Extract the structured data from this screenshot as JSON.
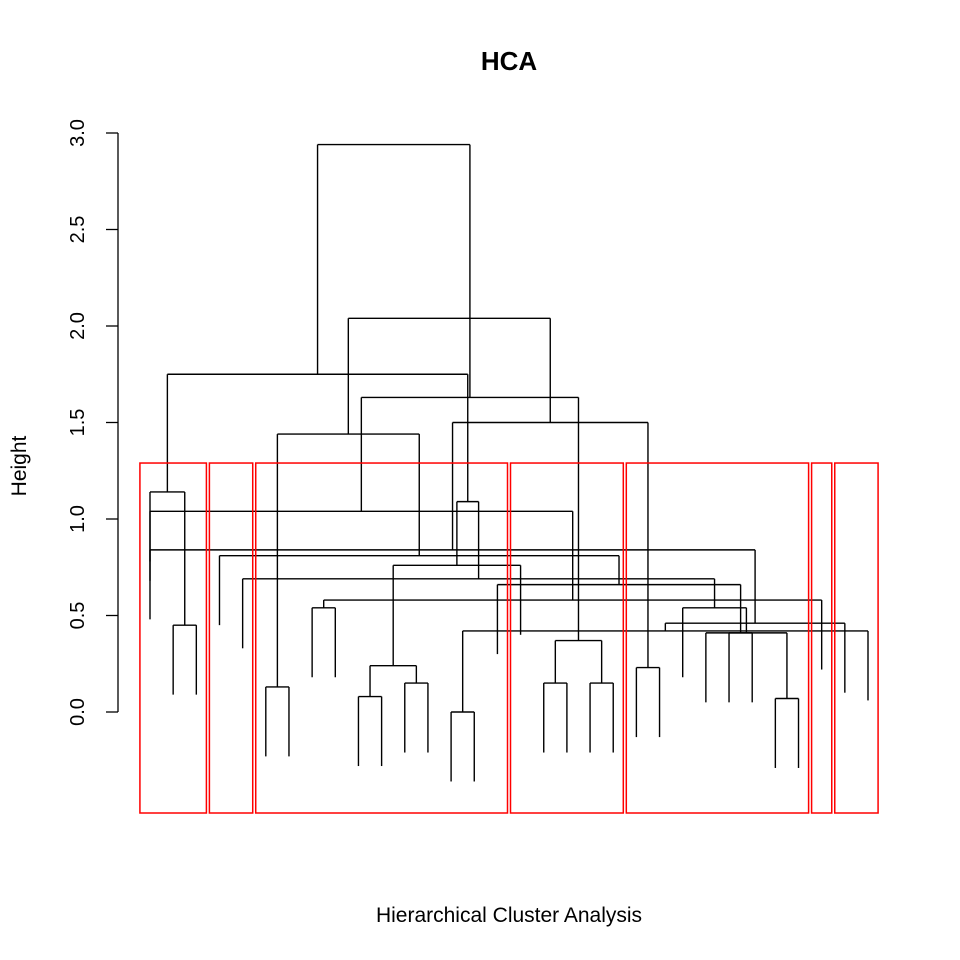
{
  "chart_data": {
    "type": "dendrogram",
    "title": "HCA",
    "xlabel": "Hierarchical Cluster Analysis",
    "ylabel": "Height",
    "ylim": [
      0,
      3
    ],
    "yticks": [
      {
        "value": 0.0,
        "label": "0.0"
      },
      {
        "value": 0.5,
        "label": "0.5"
      },
      {
        "value": 1.0,
        "label": "1.0"
      },
      {
        "value": 1.5,
        "label": "1.5"
      },
      {
        "value": 2.0,
        "label": "2.0"
      },
      {
        "value": 2.5,
        "label": "2.5"
      },
      {
        "value": 3.0,
        "label": "3.0"
      }
    ],
    "leaf_count": 32,
    "leaf_hang_height": 0.36,
    "cut_height": 1.29,
    "cut_clusters": 7,
    "cluster_box_color": "#ff0000",
    "cluster_leaf_ranges": [
      [
        1,
        3
      ],
      [
        4,
        5
      ],
      [
        6,
        16
      ],
      [
        17,
        21
      ],
      [
        22,
        29
      ],
      [
        30,
        30
      ],
      [
        31,
        32
      ]
    ],
    "merges": [
      [
        -14,
        -15,
        0.0
      ],
      [
        -28,
        -29,
        0.07
      ],
      [
        -10,
        -11,
        0.08
      ],
      [
        -6,
        -7,
        0.13
      ],
      [
        -12,
        -13,
        0.15
      ],
      [
        -18,
        -19,
        0.15
      ],
      [
        -20,
        -21,
        0.15
      ],
      [
        -22,
        -23,
        0.23
      ],
      [
        3,
        5,
        0.24
      ],
      [
        6,
        7,
        0.37
      ],
      [
        -26,
        -27,
        0.41
      ],
      [
        -25,
        2,
        0.41
      ],
      [
        -32,
        1,
        0.42
      ],
      [
        -2,
        -3,
        0.45
      ],
      [
        -31,
        13,
        0.46
      ],
      [
        -8,
        -9,
        0.54
      ],
      [
        -24,
        12,
        0.54
      ],
      [
        -30,
        16,
        0.58
      ],
      [
        -16,
        11,
        0.66
      ],
      [
        -5,
        17,
        0.69
      ],
      [
        -17,
        9,
        0.76
      ],
      [
        -4,
        19,
        0.81
      ],
      [
        -1,
        15,
        0.84
      ],
      [
        -1,
        18,
        1.04
      ],
      [
        20,
        21,
        1.09
      ],
      [
        -1,
        14,
        1.14
      ],
      [
        4,
        22,
        1.44
      ],
      [
        8,
        23,
        1.5
      ],
      [
        10,
        24,
        1.63
      ],
      [
        25,
        26,
        1.75
      ],
      [
        27,
        28,
        2.04
      ],
      [
        29,
        30,
        2.94
      ],
      [
        31,
        0,
        0
      ]
    ]
  }
}
